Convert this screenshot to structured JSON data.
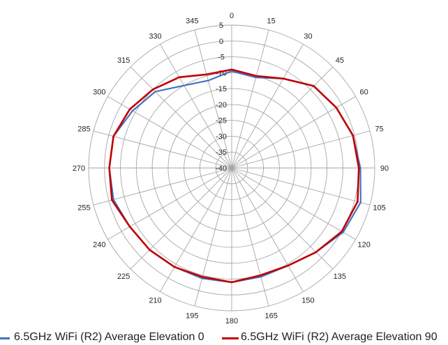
{
  "chart_data": {
    "type": "polar-line",
    "title": "",
    "r_range": [
      -40,
      5
    ],
    "r_ticks": [
      5,
      0,
      -5,
      -10,
      -15,
      -20,
      -25,
      -30,
      -35,
      -40
    ],
    "angle_ticks": [
      0,
      15,
      30,
      45,
      60,
      75,
      90,
      105,
      120,
      135,
      150,
      165,
      180,
      195,
      210,
      225,
      240,
      255,
      270,
      285,
      300,
      315,
      330,
      345
    ],
    "angle_direction": "clockwise",
    "zero_angle_position": "top",
    "angles": [
      0,
      15,
      30,
      45,
      60,
      75,
      90,
      105,
      120,
      135,
      150,
      165,
      180,
      195,
      210,
      225,
      240,
      255,
      270,
      285,
      300,
      315,
      330,
      345
    ],
    "series": [
      {
        "name": "6.5GHz WiFi (R2) Average Elevation 0",
        "color": "#4472c4",
        "values": [
          -9.5,
          -10.5,
          -7.5,
          -3.5,
          -2,
          -0.5,
          0.5,
          2,
          0.5,
          -2.5,
          -4.5,
          -4.5,
          -4,
          -4,
          -4,
          -3.5,
          -3,
          -1.5,
          -1.5,
          -1.5,
          -4,
          -6,
          -10,
          -11.5
        ]
      },
      {
        "name": "6.5GHz WiFi (R2) Average Elevation 90",
        "color": "#c00000",
        "values": [
          -9,
          -10,
          -7.5,
          -3.5,
          -2,
          -0.5,
          0,
          1,
          0,
          -2.5,
          -4.5,
          -5,
          -4,
          -4.5,
          -4,
          -3.5,
          -3,
          -1,
          -1.5,
          -1.5,
          -3,
          -5,
          -7,
          -9.5
        ]
      }
    ]
  },
  "legend": {
    "label_1": "6.5GHz WiFi (R2) Average Elevation 0",
    "label_2": "6.5GHz WiFi (R2) Average Elevation 90"
  }
}
